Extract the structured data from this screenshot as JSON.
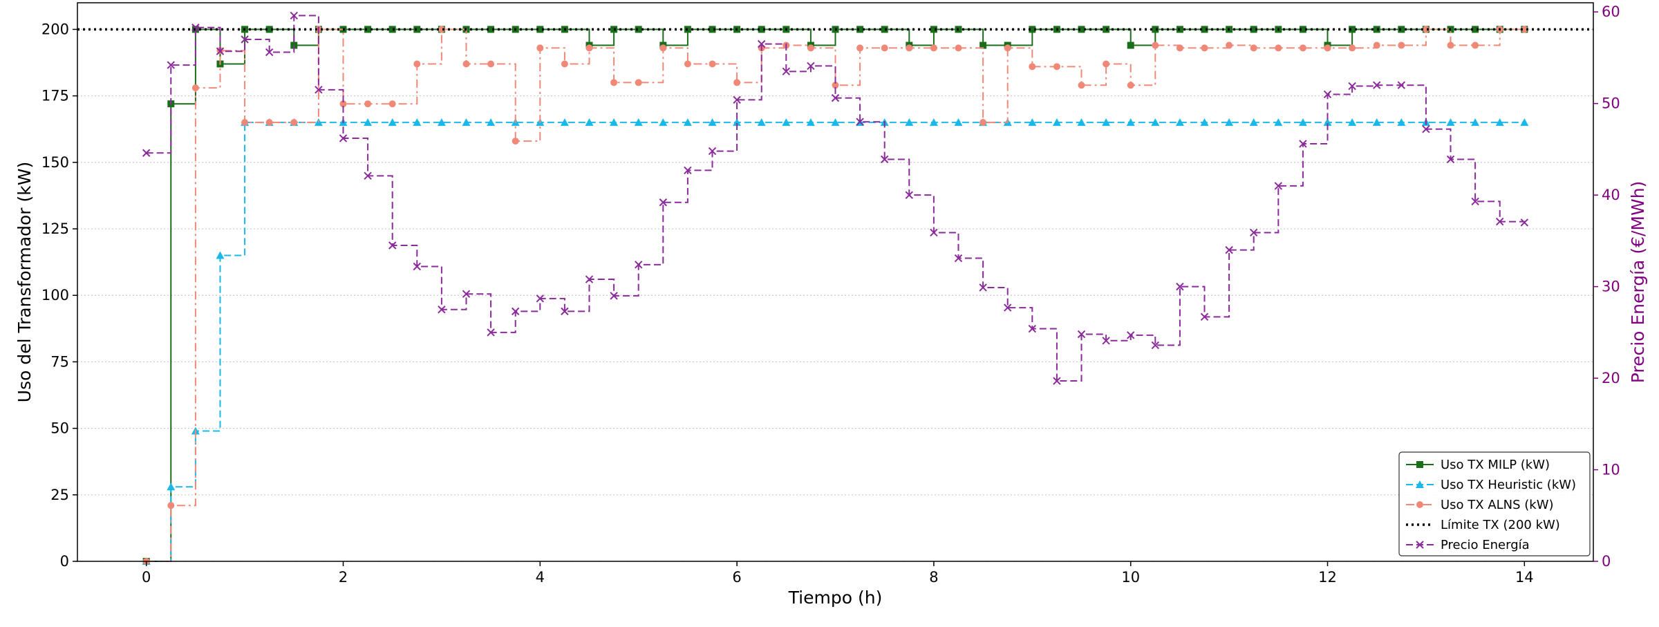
{
  "chart_data": {
    "type": "line",
    "step": "post",
    "xlabel": "Tiempo (h)",
    "ylabel": "Uso del Transformador (kW)",
    "y2label": "Precio Energía (€/MWh)",
    "xlim": [
      -0.7,
      14.7
    ],
    "ylim": [
      0,
      210
    ],
    "y2lim": [
      0,
      61
    ],
    "xticks": [
      0,
      2,
      4,
      6,
      8,
      10,
      12,
      14
    ],
    "yticks": [
      0,
      25,
      50,
      75,
      100,
      125,
      150,
      175,
      200
    ],
    "y2ticks": [
      0,
      10,
      20,
      30,
      40,
      50,
      60
    ],
    "y_grid": true,
    "legend_position": "lower right",
    "x": [
      0,
      0.25,
      0.5,
      0.75,
      1,
      1.25,
      1.5,
      1.75,
      2,
      2.25,
      2.5,
      2.75,
      3,
      3.25,
      3.5,
      3.75,
      4,
      4.25,
      4.5,
      4.75,
      5,
      5.25,
      5.5,
      5.75,
      6,
      6.25,
      6.5,
      6.75,
      7,
      7.25,
      7.5,
      7.75,
      8,
      8.25,
      8.5,
      8.75,
      9,
      9.25,
      9.5,
      9.75,
      10,
      10.25,
      10.5,
      10.75,
      11,
      11.25,
      11.5,
      11.75,
      12,
      12.25,
      12.5,
      12.75,
      13,
      13.25,
      13.5,
      13.75,
      14
    ],
    "limit": {
      "name": "Límite TX (200 kW)",
      "value": 200,
      "color": "#000000"
    },
    "series": [
      {
        "name": "Uso TX MILP (kW)",
        "axis": "left",
        "color": "#1a6e1a",
        "marker": "square",
        "dash": "solid",
        "values": [
          0,
          172,
          200,
          187,
          200,
          200,
          194,
          200,
          200,
          200,
          200,
          200,
          200,
          200,
          200,
          200,
          200,
          200,
          194,
          200,
          200,
          194,
          200,
          200,
          200,
          200,
          200,
          194,
          200,
          200,
          200,
          194,
          200,
          200,
          194,
          194,
          200,
          200,
          200,
          200,
          194,
          200,
          200,
          200,
          200,
          200,
          200,
          200,
          194,
          200,
          200,
          200,
          200,
          200,
          200,
          200,
          200
        ]
      },
      {
        "name": "Uso TX Heuristic (kW)",
        "axis": "left",
        "color": "#1ab8e8",
        "marker": "triangle",
        "dash": "dashed",
        "values": [
          0,
          28,
          49,
          115,
          165,
          165,
          165,
          165,
          165,
          165,
          165,
          165,
          165,
          165,
          165,
          165,
          165,
          165,
          165,
          165,
          165,
          165,
          165,
          165,
          165,
          165,
          165,
          165,
          165,
          165,
          165,
          165,
          165,
          165,
          165,
          165,
          165,
          165,
          165,
          165,
          165,
          165,
          165,
          165,
          165,
          165,
          165,
          165,
          165,
          165,
          165,
          165,
          165,
          165,
          165,
          165,
          165
        ]
      },
      {
        "name": "Uso TX ALNS (kW)",
        "axis": "left",
        "color": "#f08878",
        "marker": "circle",
        "dash": "dashdot",
        "values": [
          0,
          21,
          178,
          192,
          165,
          165,
          165,
          200,
          172,
          172,
          172,
          187,
          200,
          187,
          187,
          158,
          193,
          187,
          193,
          180,
          180,
          193,
          187,
          187,
          180,
          193,
          194,
          193,
          179,
          193,
          193,
          193,
          193,
          193,
          165,
          193,
          186,
          186,
          179,
          187,
          179,
          194,
          193,
          193,
          194,
          193,
          193,
          193,
          193,
          193,
          194,
          194,
          200,
          194,
          194,
          200,
          200
        ]
      },
      {
        "name": "Precio Energía",
        "axis": "right",
        "color": "#8b2a9b",
        "marker": "x",
        "dash": "dashed",
        "values": [
          44.6,
          54.2,
          58.3,
          55.7,
          57.0,
          55.6,
          59.6,
          51.5,
          46.2,
          42.1,
          34.5,
          32.2,
          27.5,
          29.2,
          25.0,
          27.3,
          28.7,
          27.3,
          30.8,
          29.0,
          32.4,
          39.2,
          42.7,
          44.8,
          50.4,
          56.5,
          53.5,
          54.1,
          50.6,
          48.0,
          43.9,
          40.0,
          35.9,
          33.1,
          29.9,
          27.7,
          25.4,
          19.7,
          24.8,
          24.1,
          24.7,
          23.6,
          30.0,
          26.7,
          34.0,
          35.9,
          41.0,
          45.6,
          51.0,
          51.9,
          52.0,
          52.0,
          47.2,
          43.9,
          39.3,
          37.1,
          37.0
        ]
      }
    ]
  }
}
